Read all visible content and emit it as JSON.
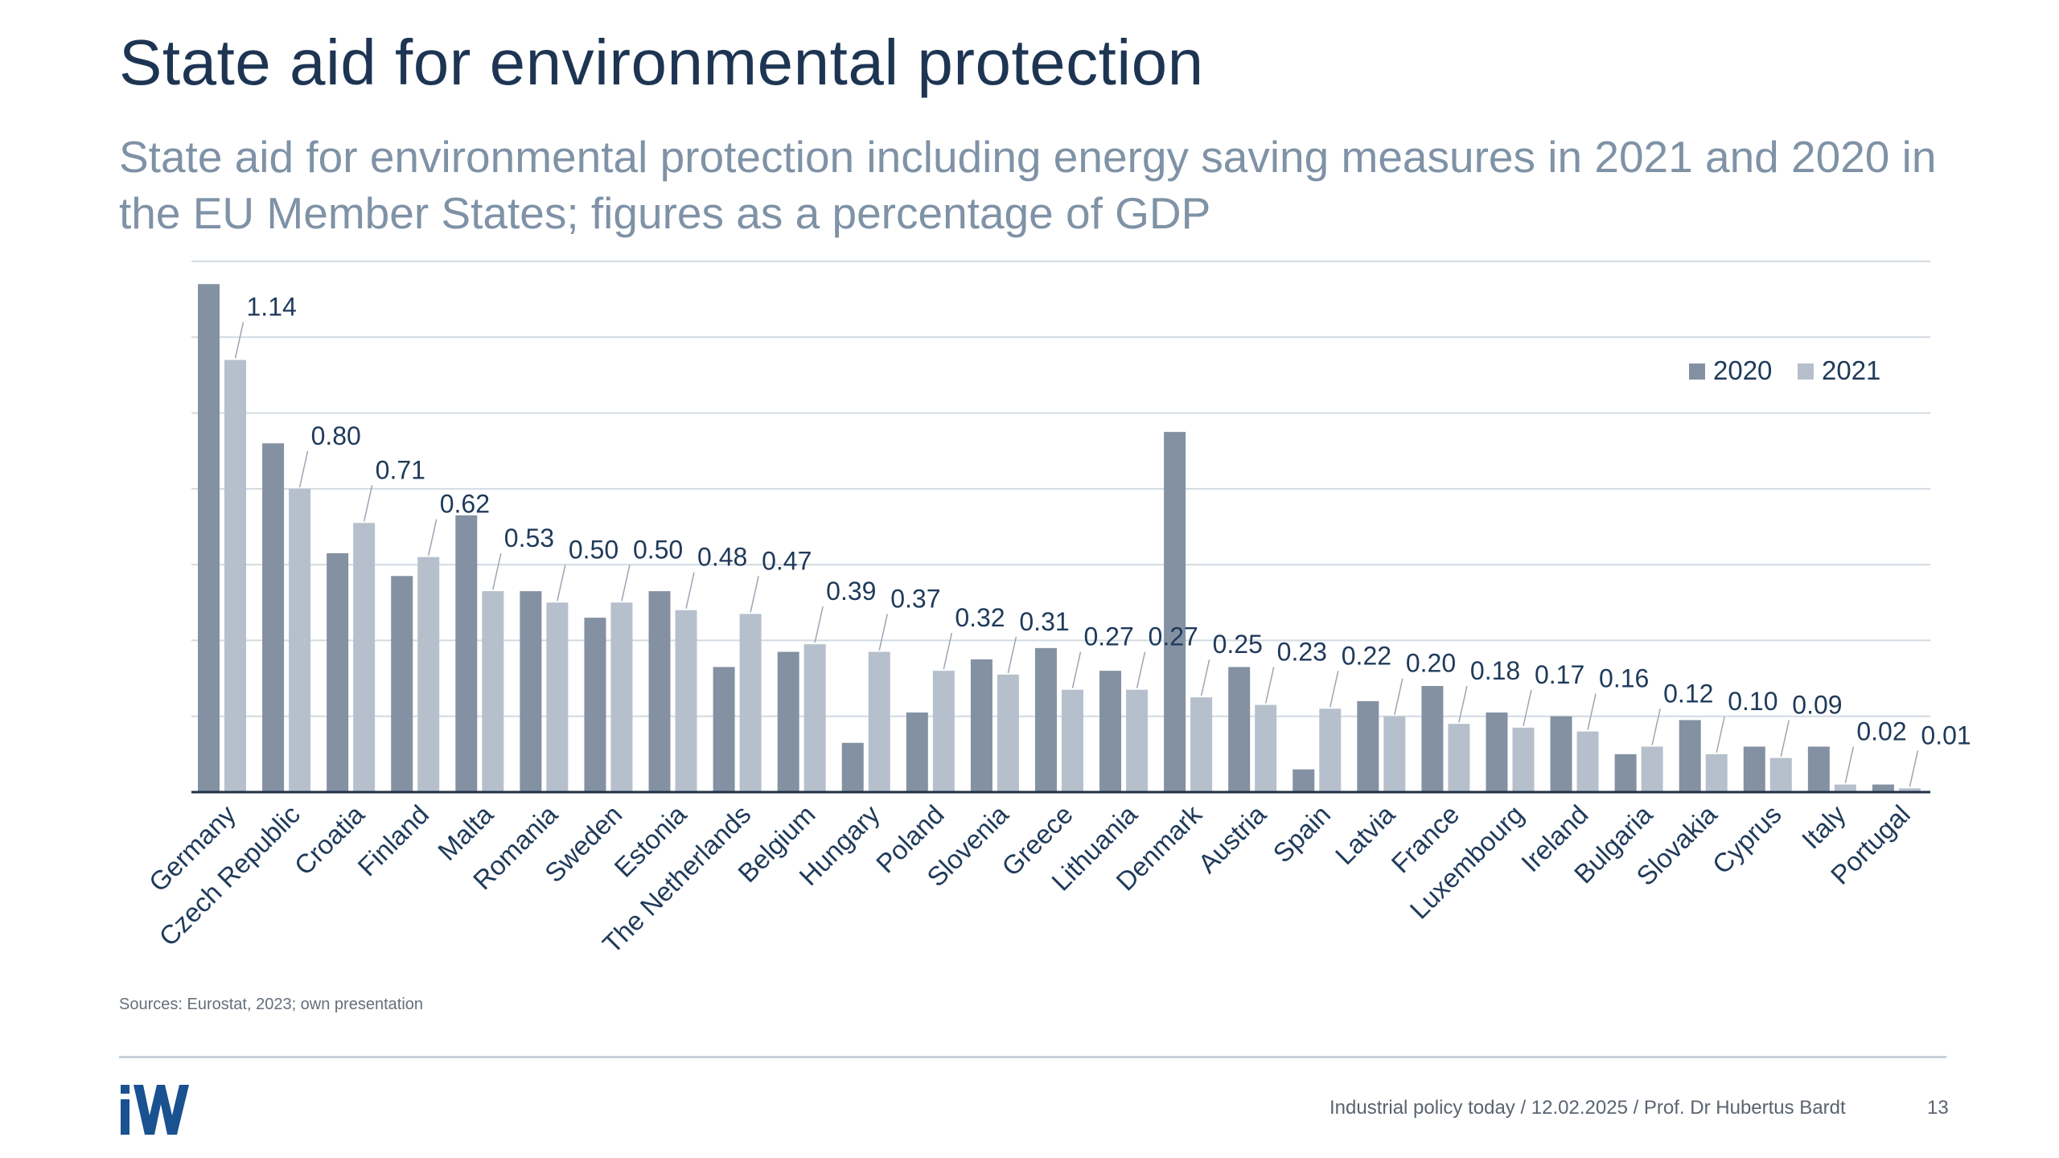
{
  "slide": {
    "title": "State aid for environmental protection",
    "subtitle": "State aid for environmental protection including energy saving measures in 2021 and 2020 in the EU Member States; figures as a percentage of GDP",
    "source": "Sources: Eurostat, 2023; own presentation",
    "footer": "Industrial policy today / 12.02.2025 / Prof. Dr Hubertus Bardt",
    "page_number": "13",
    "logo_text": "iW"
  },
  "colors": {
    "series_2020": "#8391a2",
    "series_2021": "#b6c0cc",
    "gridline": "#d3dae2",
    "axis": "#1f2f45",
    "logo": "#1a5190"
  },
  "chart_data": {
    "type": "bar",
    "categories": [
      "Germany",
      "Czech Republic",
      "Croatia",
      "Finland",
      "Malta",
      "Romania",
      "Sweden",
      "Estonia",
      "The Netherlands",
      "Belgium",
      "Hungary",
      "Poland",
      "Slovenia",
      "Greece",
      "Lithuania",
      "Denmark",
      "Austria",
      "Spain",
      "Latvia",
      "France",
      "Luxembourg",
      "Ireland",
      "Bulgaria",
      "Slovakia",
      "Cyprus",
      "Italy",
      "Portugal"
    ],
    "series": [
      {
        "name": "2020",
        "values": [
          1.34,
          0.92,
          0.63,
          0.57,
          0.73,
          0.53,
          0.46,
          0.53,
          0.33,
          0.37,
          0.13,
          0.21,
          0.35,
          0.38,
          0.32,
          0.95,
          0.33,
          0.06,
          0.24,
          0.28,
          0.21,
          0.2,
          0.1,
          0.19,
          0.12,
          0.12,
          0.02
        ]
      },
      {
        "name": "2021",
        "values": [
          1.14,
          0.8,
          0.71,
          0.62,
          0.53,
          0.5,
          0.5,
          0.48,
          0.47,
          0.39,
          0.37,
          0.32,
          0.31,
          0.27,
          0.27,
          0.25,
          0.23,
          0.22,
          0.2,
          0.18,
          0.17,
          0.16,
          0.12,
          0.1,
          0.09,
          0.02,
          0.01
        ]
      }
    ],
    "data_labels_2021": [
      "1.14",
      "0.80",
      "0.71",
      "0.62",
      "0.53",
      "0.50",
      "0.50",
      "0.48",
      "0.47",
      "0.39",
      "0.37",
      "0.32",
      "0.31",
      "0.27",
      "0.27",
      "0.25",
      "0.23",
      "0.22",
      "0.20",
      "0.18",
      "0.17",
      "0.16",
      "0.12",
      "0.10",
      "0.09",
      "0.02",
      "0.01"
    ],
    "ylim": [
      0,
      1.4
    ],
    "gridline_step": 0.2,
    "grid": true,
    "y_tick_labels_shown": false,
    "legend": [
      "2020",
      "2021"
    ],
    "legend_position": "top-right"
  }
}
